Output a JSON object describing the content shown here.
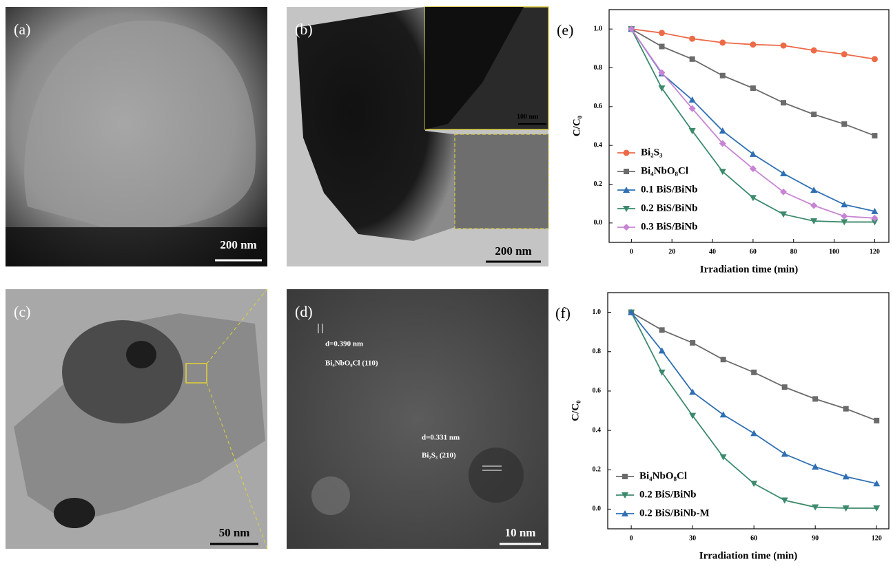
{
  "image_panels": [
    {
      "label": "(a)",
      "scale_bar": "200 nm"
    },
    {
      "label": "(b)",
      "scale_bar": "200 nm",
      "inset_scale_bar": "100 nm"
    },
    {
      "label": "(c)",
      "scale_bar": "50 nm"
    },
    {
      "label": "(d)",
      "scale_bar": "10 nm",
      "annotations": [
        "d=0.390 nm",
        "Bi₄NbO₈Cl (110)",
        "d=0.331 nm",
        "Bi₂S₃ (210)"
      ]
    }
  ],
  "chart_data": [
    {
      "type": "line",
      "panel_label": "(e)",
      "x_label": "Irradiation time (min)",
      "y_label": "C/C₀",
      "x": [
        0,
        15,
        30,
        45,
        60,
        75,
        90,
        105,
        120
      ],
      "xlim": [
        -11,
        127
      ],
      "xticks": [
        0,
        20,
        40,
        60,
        80,
        100,
        120
      ],
      "ylim": [
        -0.1,
        1.1
      ],
      "yticks": [
        {
          "value": 0,
          "label": "0.0"
        },
        {
          "value": 0.2,
          "label": "0.2"
        },
        {
          "value": 0.4,
          "label": "0.4"
        },
        {
          "value": 0.6,
          "label": "0.6"
        },
        {
          "value": 0.8,
          "label": "0.8"
        },
        {
          "value": 1,
          "label": "1.0"
        }
      ],
      "legend": "lower left",
      "grid": false,
      "series": [
        {
          "name": "Bi₂S₃",
          "color": "#ec6a47",
          "marker": "circle",
          "values": [
            1.0,
            0.98,
            0.95,
            0.93,
            0.92,
            0.915,
            0.89,
            0.87,
            0.845
          ]
        },
        {
          "name": "Bi₄NbO₈Cl",
          "color": "#6b6b6b",
          "marker": "square",
          "values": [
            1.0,
            0.91,
            0.845,
            0.76,
            0.695,
            0.62,
            0.56,
            0.51,
            0.45
          ]
        },
        {
          "name": "0.1 BiS/BiNb",
          "color": "#2f6fb4",
          "marker": "triangle-up",
          "values": [
            1.0,
            0.77,
            0.635,
            0.475,
            0.355,
            0.255,
            0.17,
            0.095,
            0.06
          ]
        },
        {
          "name": "0.2 BiS/BiNb",
          "color": "#3c8a6c",
          "marker": "triangle-down",
          "values": [
            1.0,
            0.695,
            0.475,
            0.265,
            0.13,
            0.045,
            0.01,
            0.005,
            0.005
          ]
        },
        {
          "name": "0.3 BiS/BiNb",
          "color": "#c884d4",
          "marker": "diamond",
          "values": [
            1.0,
            0.775,
            0.59,
            0.41,
            0.28,
            0.16,
            0.09,
            0.035,
            0.025
          ]
        }
      ]
    },
    {
      "type": "line",
      "panel_label": "(f)",
      "x_label": "Irradiation time (min)",
      "y_label": "C/C₀",
      "x": [
        0,
        15,
        30,
        45,
        60,
        75,
        90,
        105,
        120
      ],
      "xlim": [
        -11.5,
        126
      ],
      "xticks": [
        0,
        30,
        60,
        90,
        120
      ],
      "ylim": [
        -0.1,
        1.1
      ],
      "yticks": [
        {
          "value": 0,
          "label": "0.0"
        },
        {
          "value": 0.2,
          "label": "0.2"
        },
        {
          "value": 0.4,
          "label": "0.4"
        },
        {
          "value": 0.6,
          "label": "0.6"
        },
        {
          "value": 0.8,
          "label": "0.8"
        },
        {
          "value": 1,
          "label": "1.0"
        }
      ],
      "legend": "lower left",
      "grid": false,
      "series": [
        {
          "name": "Bi₄NbO₈Cl",
          "color": "#6b6b6b",
          "marker": "square",
          "values": [
            1.0,
            0.91,
            0.845,
            0.76,
            0.695,
            0.62,
            0.56,
            0.51,
            0.45
          ]
        },
        {
          "name": "0.2 BiS/BiNb",
          "color": "#3c8a6c",
          "marker": "triangle-down",
          "values": [
            1.0,
            0.695,
            0.475,
            0.265,
            0.13,
            0.045,
            0.01,
            0.005,
            0.005
          ]
        },
        {
          "name": "0.2 BiS/BiNb-M",
          "color": "#2f6fb4",
          "marker": "triangle-up",
          "values": [
            1.0,
            0.805,
            0.595,
            0.48,
            0.385,
            0.28,
            0.215,
            0.165,
            0.13
          ]
        }
      ]
    }
  ]
}
